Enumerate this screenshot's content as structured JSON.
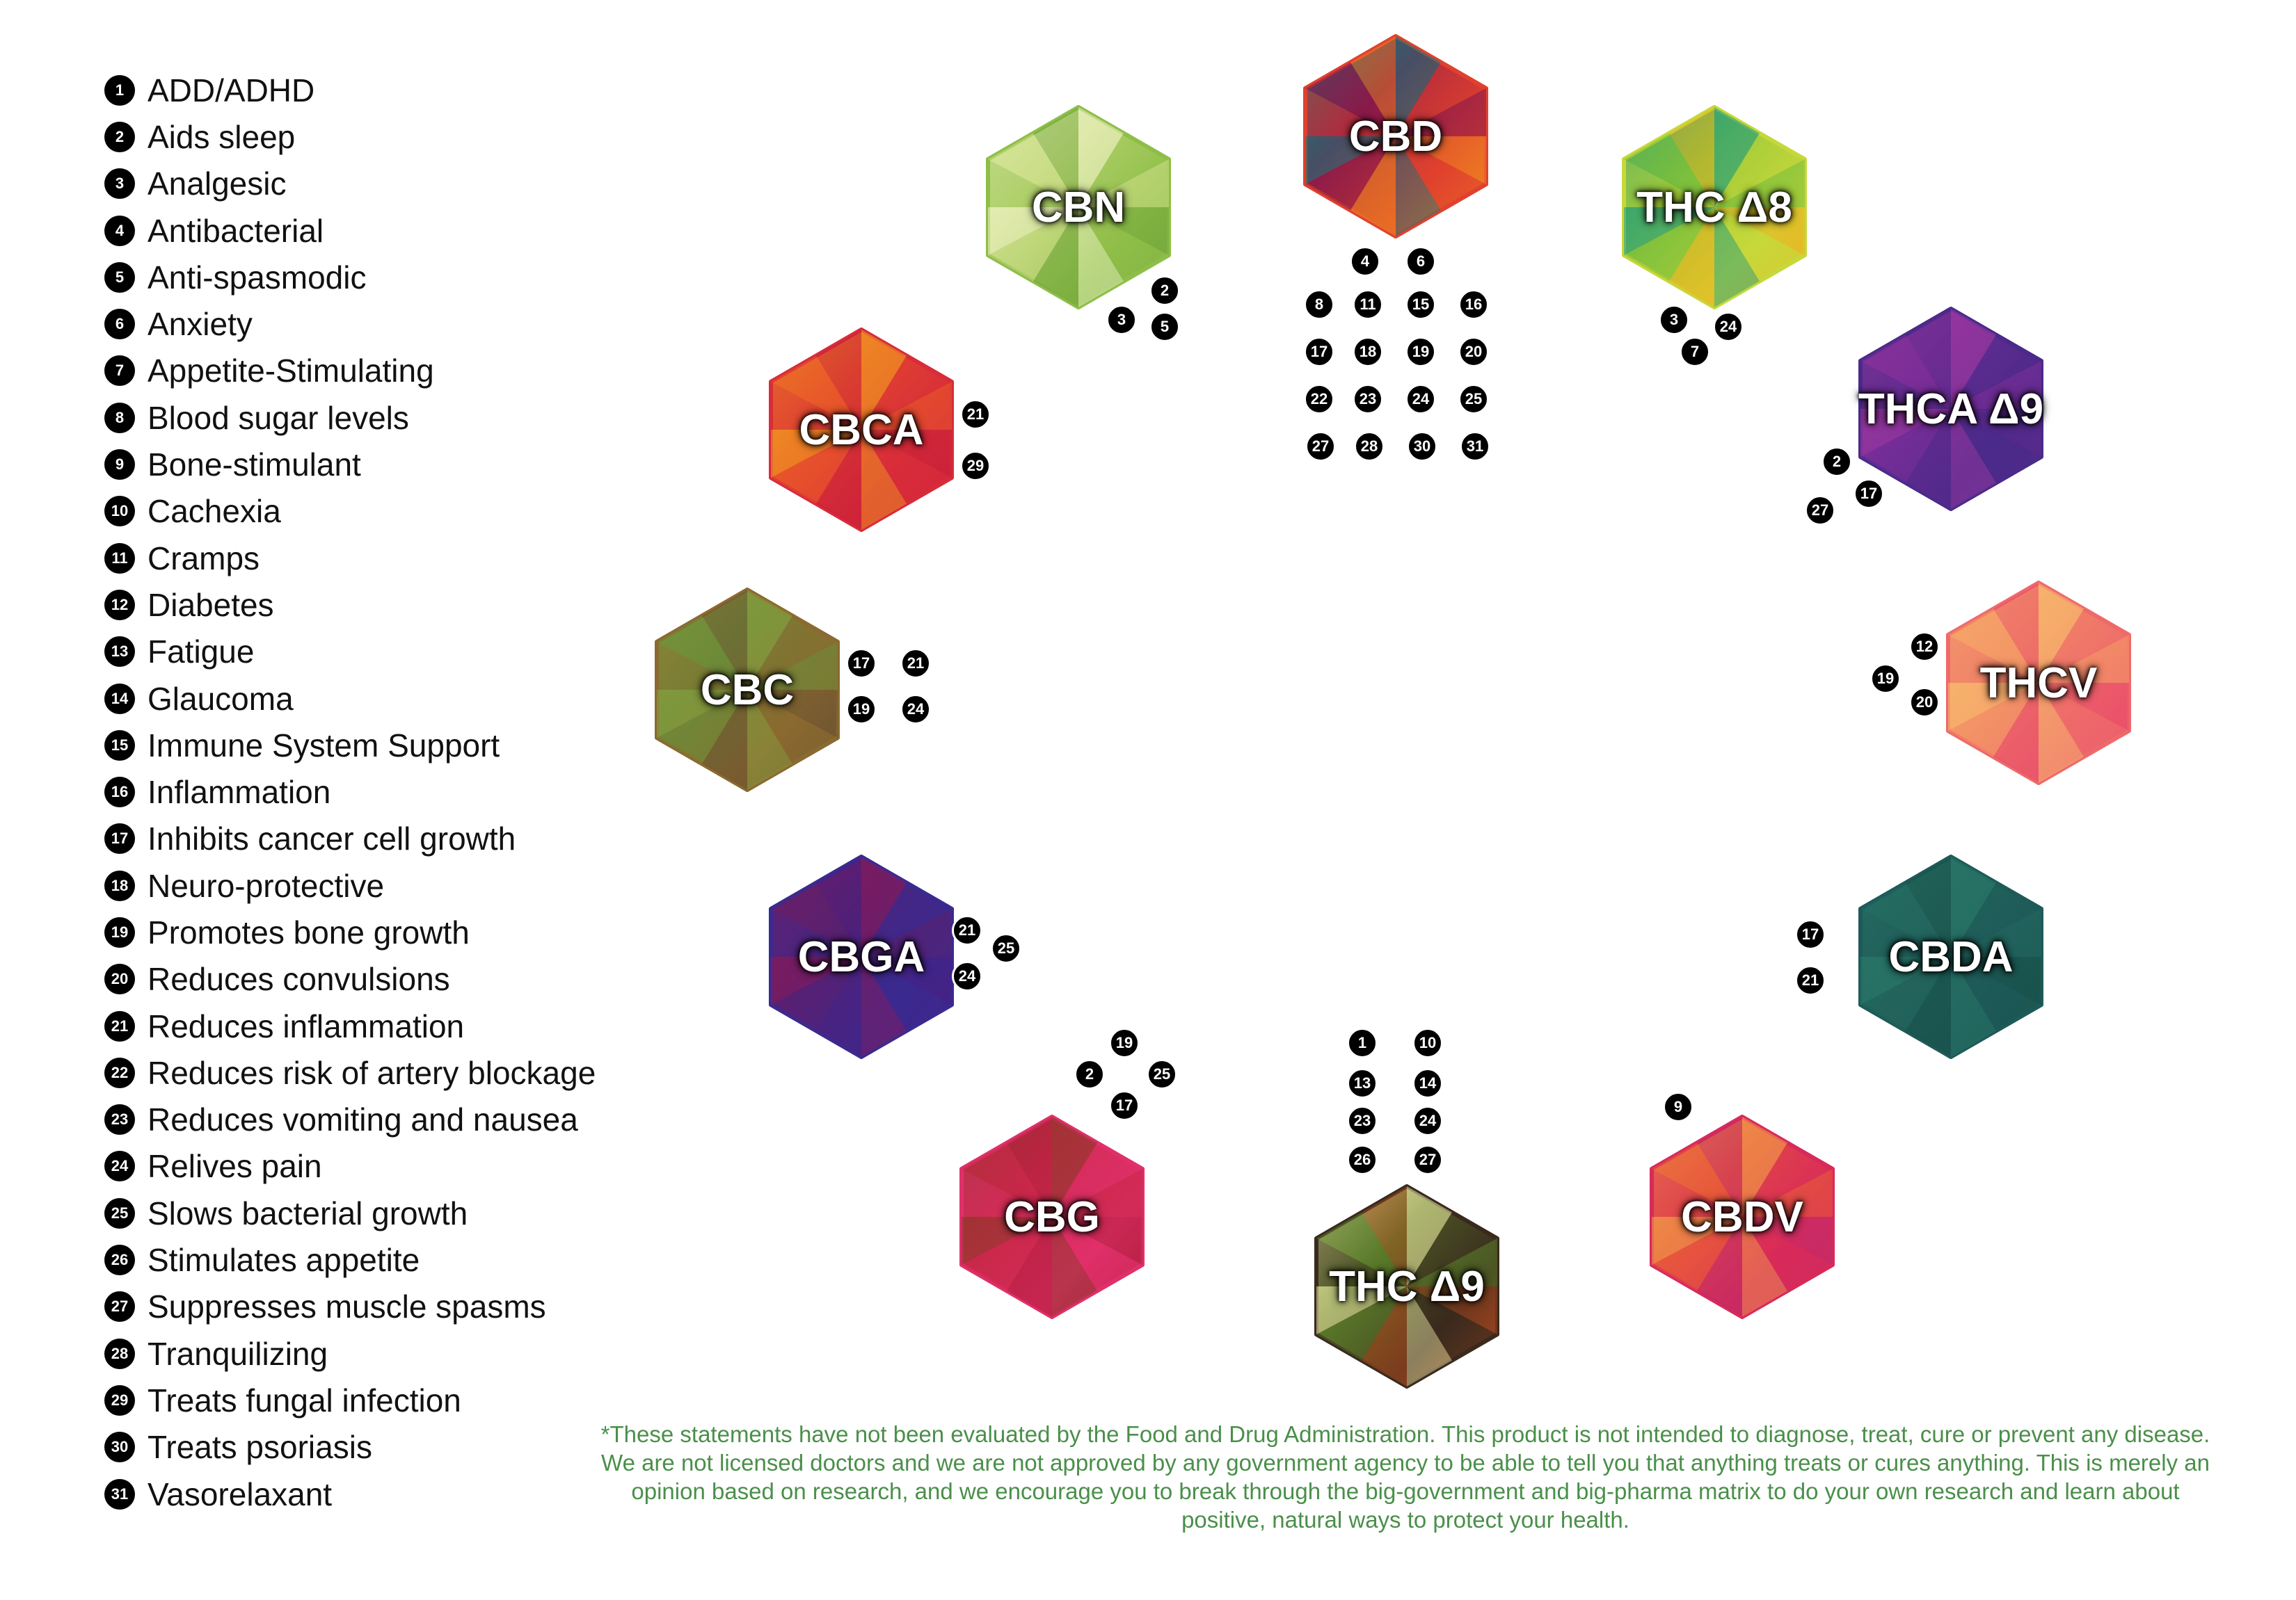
{
  "legend": [
    {
      "num": "1",
      "label": "ADD/ADHD"
    },
    {
      "num": "2",
      "label": "Aids sleep"
    },
    {
      "num": "3",
      "label": "Analgesic"
    },
    {
      "num": "4",
      "label": "Antibacterial"
    },
    {
      "num": "5",
      "label": "Anti-spasmodic"
    },
    {
      "num": "6",
      "label": "Anxiety"
    },
    {
      "num": "7",
      "label": "Appetite-Stimulating"
    },
    {
      "num": "8",
      "label": "Blood sugar levels"
    },
    {
      "num": "9",
      "label": "Bone-stimulant"
    },
    {
      "num": "10",
      "label": "Cachexia"
    },
    {
      "num": "11",
      "label": "Cramps"
    },
    {
      "num": "12",
      "label": "Diabetes"
    },
    {
      "num": "13",
      "label": "Fatigue"
    },
    {
      "num": "14",
      "label": "Glaucoma"
    },
    {
      "num": "15",
      "label": "Immune System Support"
    },
    {
      "num": "16",
      "label": "Inflammation"
    },
    {
      "num": "17",
      "label": "Inhibits cancer cell growth"
    },
    {
      "num": "18",
      "label": "Neuro-protective"
    },
    {
      "num": "19",
      "label": "Promotes bone growth"
    },
    {
      "num": "20",
      "label": "Reduces convulsions"
    },
    {
      "num": "21",
      "label": "Reduces inflammation"
    },
    {
      "num": "22",
      "label": "Reduces risk of artery blockage"
    },
    {
      "num": "23",
      "label": "Reduces vomiting and nausea"
    },
    {
      "num": "24",
      "label": "Relives pain"
    },
    {
      "num": "25",
      "label": "Slows bacterial growth"
    },
    {
      "num": "26",
      "label": "Stimulates appetite"
    },
    {
      "num": "27",
      "label": "Suppresses muscle spasms"
    },
    {
      "num": "28",
      "label": "Tranquilizing"
    },
    {
      "num": "29",
      "label": "Treats fungal infection"
    },
    {
      "num": "30",
      "label": "Treats psoriasis"
    },
    {
      "num": "31",
      "label": "Vasorelaxant"
    }
  ],
  "cannabinoids": [
    {
      "name": "CBD",
      "colors": [
        "#117a7a",
        "#8a1a4a",
        "#e0412e",
        "#f08c1e"
      ],
      "benefits": [
        "4",
        "6",
        "8",
        "11",
        "15",
        "16",
        "17",
        "18",
        "19",
        "20",
        "22",
        "23",
        "24",
        "25",
        "27",
        "28",
        "30",
        "31"
      ]
    },
    {
      "name": "CBN",
      "colors": [
        "#eef3c8",
        "#c9dc84",
        "#8fbe48",
        "#6fa43a"
      ],
      "benefits": [
        "2",
        "3",
        "5"
      ]
    },
    {
      "name": "THC Δ8",
      "colors": [
        "#1e9a86",
        "#7cbf3c",
        "#c7d83a",
        "#f2b01e"
      ],
      "benefits": [
        "3",
        "24",
        "7"
      ]
    },
    {
      "name": "THCA Δ9",
      "colors": [
        "#a03aa0",
        "#7a2e98",
        "#4a2a8a",
        "#5a2a8c"
      ],
      "benefits": [
        "2",
        "17",
        "27"
      ]
    },
    {
      "name": "CBCA",
      "colors": [
        "#f0a020",
        "#e8562a",
        "#d82c3a",
        "#c81e3a"
      ],
      "benefits": [
        "21",
        "29"
      ]
    },
    {
      "name": "CBC",
      "colors": [
        "#8aa040",
        "#6e8a38",
        "#8a6a30",
        "#6a5030"
      ],
      "benefits": [
        "17",
        "21",
        "19",
        "24"
      ]
    },
    {
      "name": "THCV",
      "colors": [
        "#f8c070",
        "#f49866",
        "#ee6a6a",
        "#e8486a"
      ],
      "benefits": [
        "12",
        "19",
        "20"
      ]
    },
    {
      "name": "CBGA",
      "colors": [
        "#8a1a5a",
        "#5a2070",
        "#3a2a90",
        "#4a2080"
      ],
      "benefits": [
        "21",
        "25",
        "24"
      ]
    },
    {
      "name": "CBDA",
      "colors": [
        "#2a7a6a",
        "#23665e",
        "#1e5a58",
        "#185048"
      ],
      "benefits": [
        "17",
        "21"
      ]
    },
    {
      "name": "CBG",
      "colors": [
        "#8a3a2a",
        "#c82848",
        "#e0306a",
        "#b01e3c"
      ],
      "benefits": [
        "19",
        "2",
        "25",
        "17"
      ]
    },
    {
      "name": "THC Δ9",
      "colors": [
        "#f0e8a8",
        "#5a7a2a",
        "#3a2a1e",
        "#b04a1e"
      ],
      "benefits": [
        "1",
        "10",
        "13",
        "14",
        "23",
        "24",
        "26",
        "27"
      ]
    },
    {
      "name": "CBDV",
      "colors": [
        "#f0a050",
        "#e85a3a",
        "#d82a5a",
        "#c02a6a"
      ],
      "benefits": [
        "9"
      ]
    }
  ],
  "disclaimer": "*These statements have not been evaluated by the Food and Drug Administration.  This product is not intended to diagnose, treat, cure or prevent any disease.  We are not licensed doctors and we are not approved by any government agency to be able to tell you that anything treats or cures anything.  This is merely an opinion based on research, and we encourage you to break through the big-government and big-pharma matrix to do your own research and learn about positive, natural ways to protect your health."
}
